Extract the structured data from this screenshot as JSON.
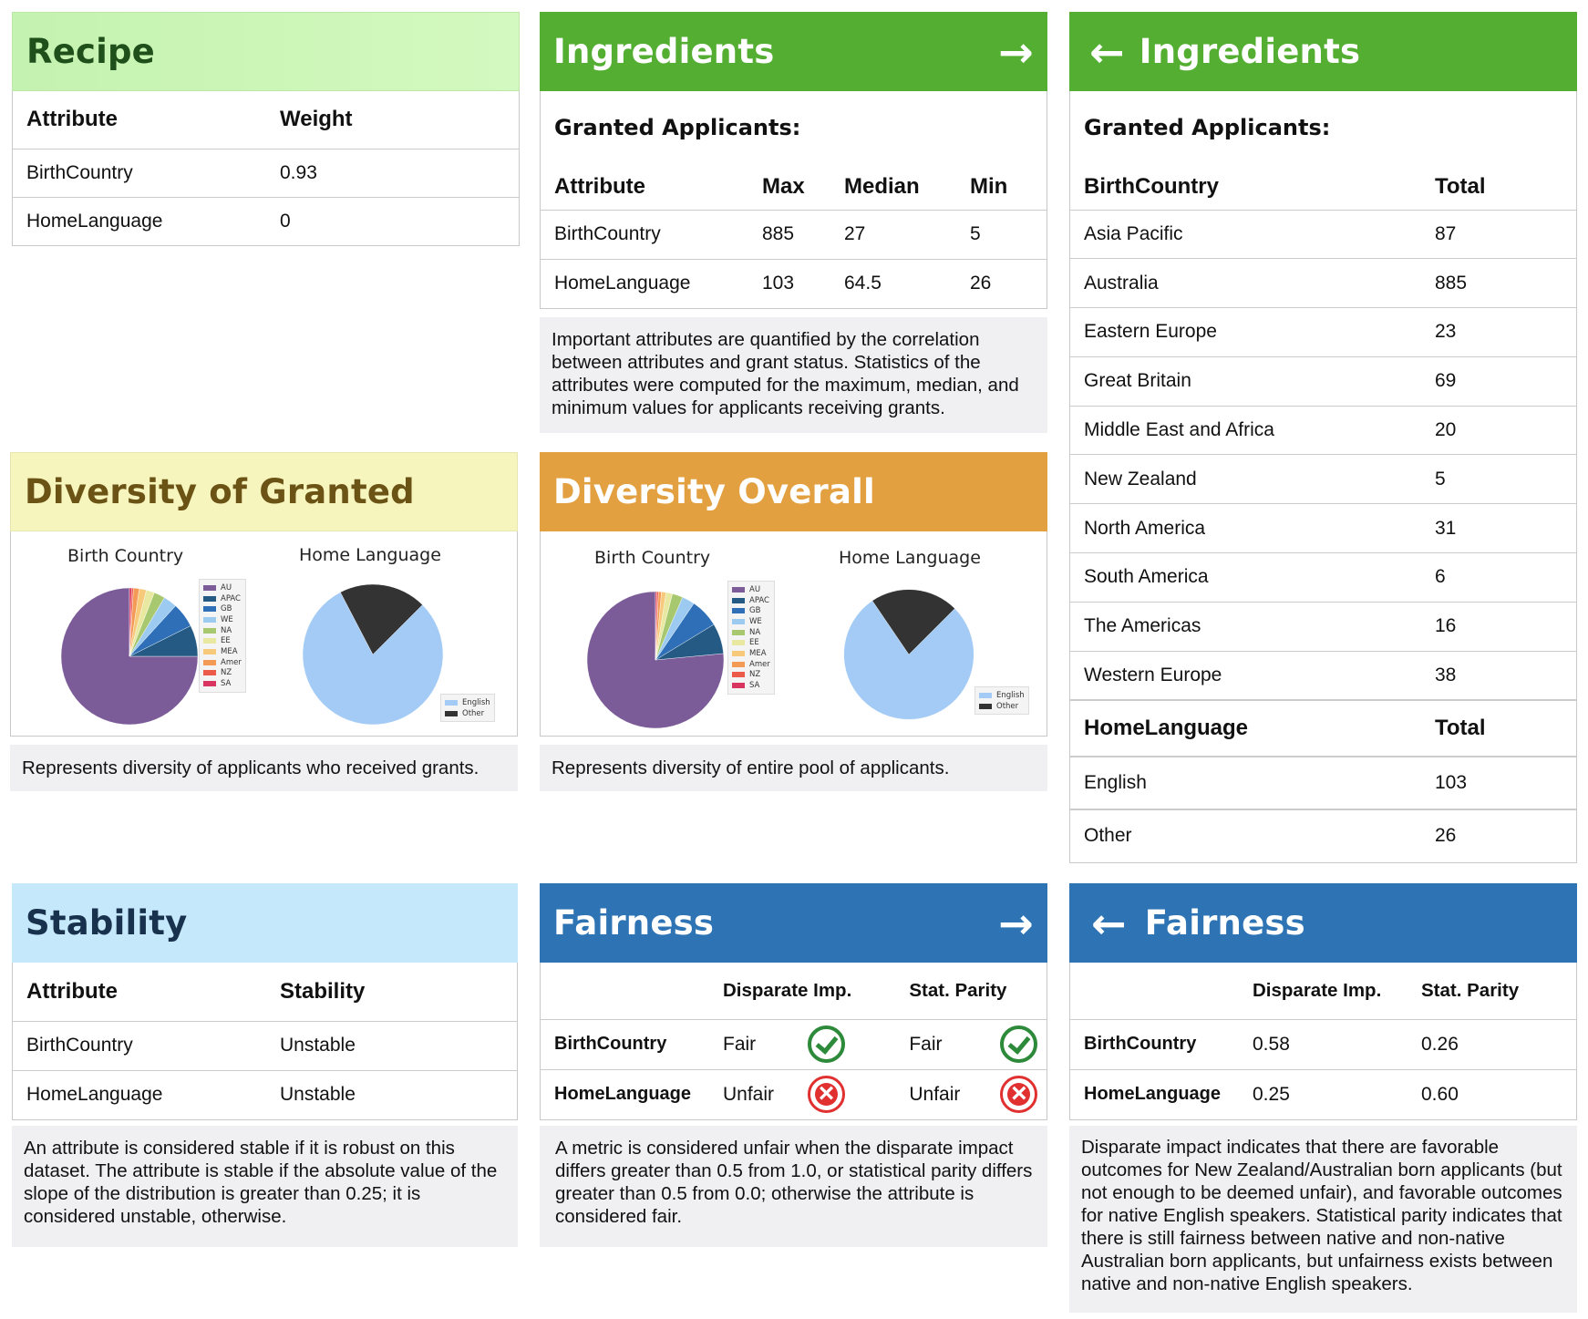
{
  "colors": {
    "recipe_head": "#c8f5b5",
    "ingredients_head": "#53ae32",
    "diversity_granted_head": "#f7f5be",
    "diversity_overall_head": "#e2a040",
    "stability_head": "#c6e8fb",
    "fairness_head": "#2e74b5",
    "purple": "#7b5c99"
  },
  "recipe": {
    "title": "Recipe",
    "headers": [
      "Attribute",
      "Weight"
    ],
    "rows": [
      [
        "BirthCountry",
        "0.93"
      ],
      [
        "HomeLanguage",
        "0"
      ]
    ]
  },
  "ingredients": {
    "title": "Ingredients",
    "arrow": "→",
    "subtitle": "Granted Applicants:",
    "headers": [
      "Attribute",
      "Max",
      "Median",
      "Min"
    ],
    "rows": [
      [
        "BirthCountry",
        "885",
        "27",
        "5"
      ],
      [
        "HomeLanguage",
        "103",
        "64.5",
        "26"
      ]
    ],
    "note": "Important attributes are quantified by the correlation between attributes and grant status. Statistics of the attributes were computed for the maximum, median, and minimum values for applicants receiving grants."
  },
  "ingredients_detail": {
    "title": "Ingredients",
    "arrow": "←",
    "subtitle": "Granted Applicants:",
    "country_headers": [
      "BirthCountry",
      "Total"
    ],
    "countries": [
      [
        "Asia Pacific",
        "87"
      ],
      [
        "Australia",
        "885"
      ],
      [
        "Eastern Europe",
        "23"
      ],
      [
        "Great Britain",
        "69"
      ],
      [
        "Middle East and Africa",
        "20"
      ],
      [
        "New Zealand",
        "5"
      ],
      [
        "North America",
        "31"
      ],
      [
        "South America",
        "6"
      ],
      [
        "The Americas",
        "16"
      ],
      [
        "Western Europe",
        "38"
      ]
    ],
    "language_headers": [
      "HomeLanguage",
      "Total"
    ],
    "languages": [
      [
        "English",
        "103"
      ],
      [
        "Other",
        "26"
      ]
    ]
  },
  "diversity_granted": {
    "title": "Diversity of Granted",
    "pie1_title": "Birth Country",
    "pie2_title": "Home Language",
    "note": "Represents diversity of applicants who received grants."
  },
  "diversity_overall": {
    "title": "Diversity Overall",
    "pie1_title": "Birth Country",
    "pie2_title": "Home Language",
    "note": "Represents diversity of entire pool of applicants."
  },
  "pie_legend_country": [
    "AU",
    "APAC",
    "GB",
    "WE",
    "NA",
    "EE",
    "MEA",
    "Amer",
    "NZ",
    "SA"
  ],
  "pie_legend_country_colors": [
    "#7b5c99",
    "#245a84",
    "#2e6fb8",
    "#9ccaf0",
    "#a8c870",
    "#e8e8a0",
    "#f7c97a",
    "#f39a57",
    "#ec5a4a",
    "#d83560"
  ],
  "pie_legend_language": [
    "English",
    "Other"
  ],
  "pie_legend_language_colors": [
    "#a3cbf5",
    "#333333"
  ],
  "chart_data": [
    {
      "type": "pie",
      "title": "Birth Country",
      "labels": [
        "AU",
        "APAC",
        "GB",
        "WE",
        "NA",
        "EE",
        "MEA",
        "Amer",
        "NZ",
        "SA"
      ],
      "values": [
        885,
        87,
        69,
        38,
        31,
        23,
        20,
        16,
        5,
        6
      ]
    },
    {
      "type": "pie",
      "title": "Home Language",
      "labels": [
        "English",
        "Other"
      ],
      "values": [
        103,
        26
      ]
    },
    {
      "type": "pie",
      "title": "Birth Country",
      "labels": [
        "AU",
        "APAC",
        "GB",
        "WE",
        "NA",
        "EE",
        "MEA",
        "Amer",
        "NZ",
        "SA"
      ],
      "values": [
        76.5,
        7.2,
        6.8,
        3.0,
        2.5,
        1.5,
        1.1,
        0.7,
        0.4,
        0.3
      ]
    },
    {
      "type": "pie",
      "title": "Home Language",
      "labels": [
        "English",
        "Other"
      ],
      "values": [
        78,
        22
      ]
    }
  ],
  "stability": {
    "title": "Stability",
    "headers": [
      "Attribute",
      "Stability"
    ],
    "rows": [
      [
        "BirthCountry",
        "Unstable"
      ],
      [
        "HomeLanguage",
        "Unstable"
      ]
    ],
    "note": "An attribute is considered stable if it is robust on this dataset. The attribute is stable if the absolute value of the slope of the distribution is greater than 0.25; it is considered unstable, otherwise."
  },
  "fairness": {
    "title": "Fairness",
    "arrow": "→",
    "headers": [
      "",
      "Disparate Imp.",
      "Stat. Parity"
    ],
    "rows": [
      {
        "attr": "BirthCountry",
        "di": "Fair",
        "di_ok": true,
        "sp": "Fair",
        "sp_ok": true
      },
      {
        "attr": "HomeLanguage",
        "di": "Unfair",
        "di_ok": false,
        "sp": "Unfair",
        "sp_ok": false
      }
    ],
    "note": "A metric is considered unfair when the disparate impact differs greater than 0.5 from 1.0, or statistical parity differs greater than 0.5 from 0.0; otherwise the attribute is considered fair."
  },
  "fairness_detail": {
    "title": "Fairness",
    "arrow": "←",
    "headers": [
      "",
      "Disparate Imp.",
      "Stat. Parity"
    ],
    "rows": [
      [
        "BirthCountry",
        "0.58",
        "0.26"
      ],
      [
        "HomeLanguage",
        "0.25",
        "0.60"
      ]
    ],
    "note": "Disparate impact indicates that there are favorable outcomes for New Zealand/Australian born applicants (but not enough to be deemed unfair), and favorable outcomes for native English speakers. Statistical parity indicates that there is still fairness between native and non-native Australian born applicants, but unfairness exists between native and non-native English speakers."
  }
}
